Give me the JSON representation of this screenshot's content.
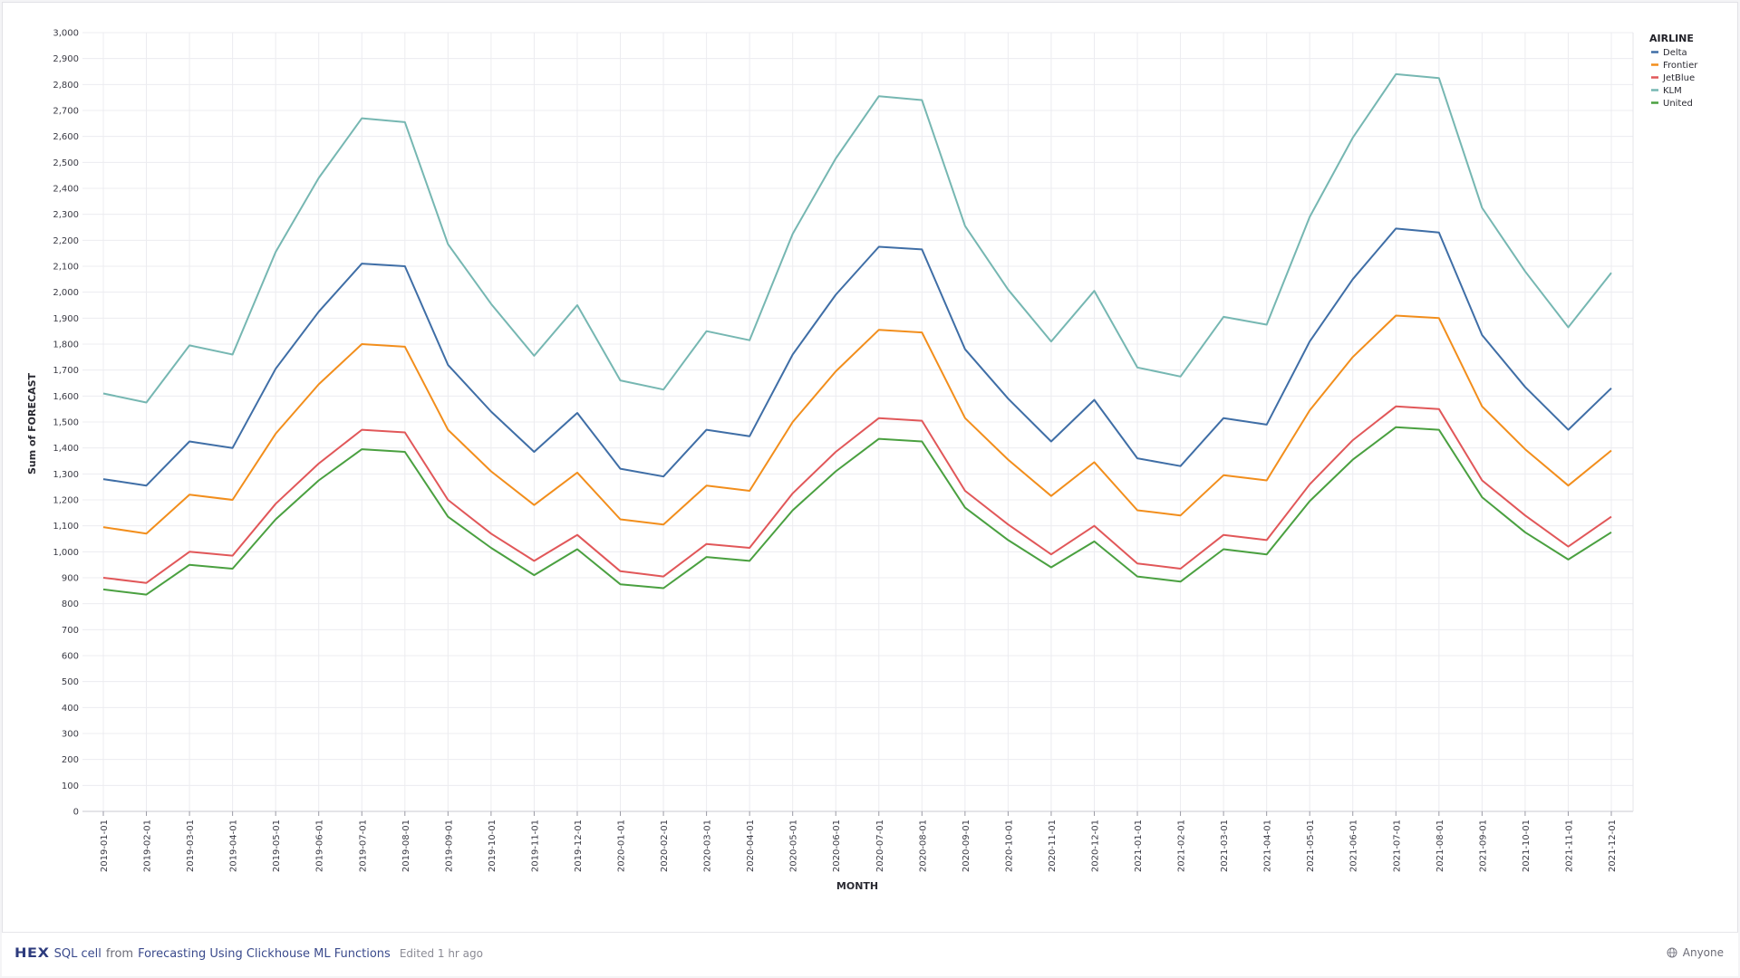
{
  "chart_data": {
    "type": "line",
    "xlabel": "MONTH",
    "ylabel": "Sum of FORECAST",
    "ylim": [
      0,
      3000
    ],
    "ytick_step": 100,
    "grid": true,
    "legend": {
      "title": "AIRLINE",
      "placement": "top-right"
    },
    "categories": [
      "2019-01-01",
      "2019-02-01",
      "2019-03-01",
      "2019-04-01",
      "2019-05-01",
      "2019-06-01",
      "2019-07-01",
      "2019-08-01",
      "2019-09-01",
      "2019-10-01",
      "2019-11-01",
      "2019-12-01",
      "2020-01-01",
      "2020-02-01",
      "2020-03-01",
      "2020-04-01",
      "2020-05-01",
      "2020-06-01",
      "2020-07-01",
      "2020-08-01",
      "2020-09-01",
      "2020-10-01",
      "2020-11-01",
      "2020-12-01",
      "2021-01-01",
      "2021-02-01",
      "2021-03-01",
      "2021-04-01",
      "2021-05-01",
      "2021-06-01",
      "2021-07-01",
      "2021-08-01",
      "2021-09-01",
      "2021-10-01",
      "2021-11-01",
      "2021-12-01"
    ],
    "series": [
      {
        "name": "Delta",
        "color": "#3f6ea6",
        "values": [
          1280,
          1255,
          1425,
          1400,
          1705,
          1925,
          2110,
          2100,
          1720,
          1540,
          1385,
          1535,
          1320,
          1290,
          1470,
          1445,
          1760,
          1990,
          2175,
          2165,
          1780,
          1590,
          1425,
          1585,
          1360,
          1330,
          1515,
          1490,
          1810,
          2050,
          2245,
          2230,
          1835,
          1635,
          1470,
          1630
        ]
      },
      {
        "name": "Frontier",
        "color": "#f28e1c",
        "values": [
          1095,
          1070,
          1220,
          1200,
          1455,
          1645,
          1800,
          1790,
          1470,
          1310,
          1180,
          1305,
          1125,
          1105,
          1255,
          1235,
          1500,
          1695,
          1855,
          1845,
          1515,
          1355,
          1215,
          1345,
          1160,
          1140,
          1295,
          1275,
          1545,
          1750,
          1910,
          1900,
          1560,
          1395,
          1255,
          1390
        ]
      },
      {
        "name": "JetBlue",
        "color": "#e15759",
        "values": [
          900,
          880,
          1000,
          985,
          1185,
          1340,
          1470,
          1460,
          1200,
          1070,
          965,
          1065,
          925,
          905,
          1030,
          1015,
          1225,
          1385,
          1515,
          1505,
          1235,
          1105,
          990,
          1100,
          955,
          935,
          1065,
          1045,
          1260,
          1430,
          1560,
          1550,
          1275,
          1140,
          1020,
          1135
        ]
      },
      {
        "name": "KLM",
        "color": "#76b7b2",
        "values": [
          1610,
          1575,
          1795,
          1760,
          2155,
          2440,
          2670,
          2655,
          2185,
          1955,
          1755,
          1950,
          1660,
          1625,
          1850,
          1815,
          2225,
          2515,
          2755,
          2740,
          2255,
          2010,
          1810,
          2005,
          1710,
          1675,
          1905,
          1875,
          2290,
          2595,
          2840,
          2825,
          2325,
          2080,
          1865,
          2075
        ]
      },
      {
        "name": "United",
        "color": "#4aa040",
        "values": [
          855,
          835,
          950,
          935,
          1125,
          1275,
          1395,
          1385,
          1135,
          1015,
          910,
          1010,
          875,
          860,
          980,
          965,
          1160,
          1310,
          1435,
          1425,
          1170,
          1045,
          940,
          1040,
          905,
          885,
          1010,
          990,
          1195,
          1355,
          1480,
          1470,
          1210,
          1075,
          970,
          1075
        ]
      }
    ]
  },
  "footer": {
    "logo": "HEX",
    "cell_type": "SQL cell",
    "from_text": "from",
    "project_name": "Forecasting Using Clickhouse ML Functions",
    "edited": "Edited 1 hr ago",
    "sharing": "Anyone"
  }
}
